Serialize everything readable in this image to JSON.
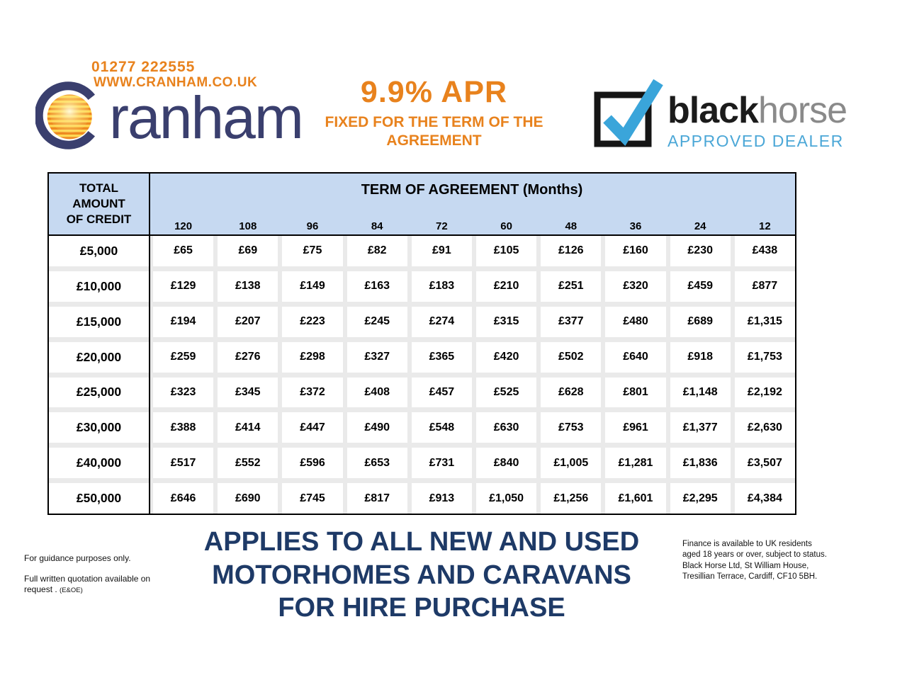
{
  "header": {
    "phone": "01277 222555",
    "website": "WWW.CRANHAM.CO.UK",
    "logo_text": "ranham",
    "apr_title": "9.9% APR",
    "apr_sub1": "FIXED FOR THE TERM OF THE",
    "apr_sub2": "AGREEMENT",
    "dealer": {
      "brand_bold": "black",
      "brand_light": "horse",
      "tagline": "APPROVED DEALER"
    }
  },
  "table": {
    "corner_lines": [
      "TOTAL",
      "AMOUNT",
      "OF CREDIT"
    ],
    "term_header": "TERM OF AGREEMENT (Months)",
    "terms": [
      "120",
      "108",
      "96",
      "84",
      "72",
      "60",
      "48",
      "36",
      "24",
      "12"
    ],
    "rows": [
      {
        "credit": "£5,000",
        "values": [
          "£65",
          "£69",
          "£75",
          "£82",
          "£91",
          "£105",
          "£126",
          "£160",
          "£230",
          "£438"
        ]
      },
      {
        "credit": "£10,000",
        "values": [
          "£129",
          "£138",
          "£149",
          "£163",
          "£183",
          "£210",
          "£251",
          "£320",
          "£459",
          "£877"
        ]
      },
      {
        "credit": "£15,000",
        "values": [
          "£194",
          "£207",
          "£223",
          "£245",
          "£274",
          "£315",
          "£377",
          "£480",
          "£689",
          "£1,315"
        ]
      },
      {
        "credit": "£20,000",
        "values": [
          "£259",
          "£276",
          "£298",
          "£327",
          "£365",
          "£420",
          "£502",
          "£640",
          "£918",
          "£1,753"
        ]
      },
      {
        "credit": "£25,000",
        "values": [
          "£323",
          "£345",
          "£372",
          "£408",
          "£457",
          "£525",
          "£628",
          "£801",
          "£1,148",
          "£2,192"
        ]
      },
      {
        "credit": "£30,000",
        "values": [
          "£388",
          "£414",
          "£447",
          "£490",
          "£548",
          "£630",
          "£753",
          "£961",
          "£1,377",
          "£2,630"
        ]
      },
      {
        "credit": "£40,000",
        "values": [
          "£517",
          "£552",
          "£596",
          "£653",
          "£731",
          "£840",
          "£1,005",
          "£1,281",
          "£1,836",
          "£3,507"
        ]
      },
      {
        "credit": "£50,000",
        "values": [
          "£646",
          "£690",
          "£745",
          "£817",
          "£913",
          "£1,050",
          "£1,256",
          "£1,601",
          "£2,295",
          "£4,384"
        ]
      }
    ]
  },
  "footer": {
    "left_note1": "For guidance purposes only.",
    "left_note2": "Full written quotation available on request . ",
    "left_note2_suffix": "(E&OE)",
    "headline_lines": [
      "APPLIES TO ALL NEW AND USED",
      "MOTORHOMES AND CARAVANS",
      "FOR HIRE PURCHASE"
    ],
    "right_note1": "Finance is available to UK residents aged 18 years or over, subject to status.",
    "right_note2": "Black Horse Ltd, St William House, Tresillian Terrace, Cardiff, CF10 5BH."
  },
  "colors": {
    "orange": "#e8821d",
    "logo_navy": "#3a3f6e",
    "headline_navy": "#1e3a67",
    "header_blue": "#c6d9f1",
    "grid_gray": "#eaeaea",
    "blackhorse_blue": "#3aa5da",
    "blackhorse_gray": "#8a8a8a"
  }
}
